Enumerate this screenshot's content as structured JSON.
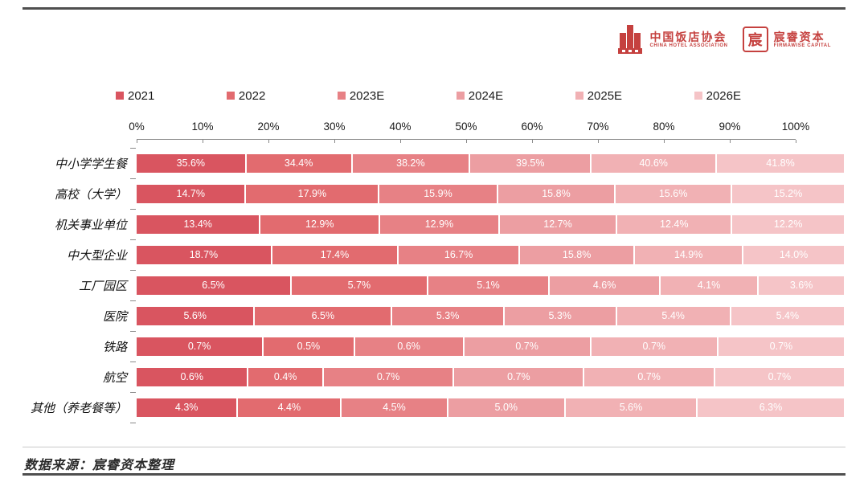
{
  "page": {
    "background": "#ffffff"
  },
  "header": {
    "brand_color": "#c5413f",
    "cha_logo": {
      "cn": "中国饭店协会",
      "en": "CHINA HOTEL ASSOCIATION"
    },
    "firmawise_logo": {
      "cn": "宸睿资本",
      "en": "FIRMAWISE CAPITAL",
      "seal_char": "宸"
    }
  },
  "chart_data": {
    "type": "bar",
    "variant": "horizontal_percent_stacked",
    "categories": [
      "中小学学生餐",
      "高校（大学）",
      "机关事业单位",
      "中大型企业",
      "工厂园区",
      "医院",
      "铁路",
      "航空",
      "其他（养老餐等）"
    ],
    "series": [
      {
        "name": "2021",
        "color": "#d95560",
        "values": [
          35.6,
          14.7,
          13.4,
          18.7,
          6.5,
          5.6,
          0.7,
          0.6,
          4.3
        ]
      },
      {
        "name": "2022",
        "color": "#e26b6f",
        "values": [
          34.4,
          17.9,
          12.9,
          17.4,
          5.7,
          6.5,
          0.5,
          0.4,
          4.4
        ]
      },
      {
        "name": "2023E",
        "color": "#e78185",
        "values": [
          38.2,
          15.9,
          12.9,
          16.7,
          5.1,
          5.3,
          0.6,
          0.7,
          4.5
        ]
      },
      {
        "name": "2024E",
        "color": "#ec9ea2",
        "values": [
          39.5,
          15.8,
          12.7,
          15.8,
          4.6,
          5.3,
          0.7,
          0.7,
          5.0
        ]
      },
      {
        "name": "2025E",
        "color": "#f1b1b4",
        "values": [
          40.6,
          15.6,
          12.4,
          14.9,
          4.1,
          5.4,
          0.7,
          0.7,
          5.6
        ]
      },
      {
        "name": "2026E",
        "color": "#f5c4c7",
        "values": [
          41.8,
          15.2,
          12.2,
          14.0,
          3.6,
          5.4,
          0.7,
          0.7,
          6.3
        ]
      }
    ],
    "value_suffix": "%",
    "value_decimals": 1,
    "bar_label_color": "#ffffff",
    "legend_position": "top",
    "xaxis": {
      "min": 0,
      "max": 100,
      "tick_labels": [
        "0%",
        "10%",
        "20%",
        "30%",
        "40%",
        "50%",
        "60%",
        "70%",
        "80%",
        "90%",
        "100%"
      ]
    },
    "layout_note": "each row normalized to full 100% width; segment widths proportional to year values"
  },
  "footer": {
    "source": "数据来源：宸睿资本整理"
  }
}
